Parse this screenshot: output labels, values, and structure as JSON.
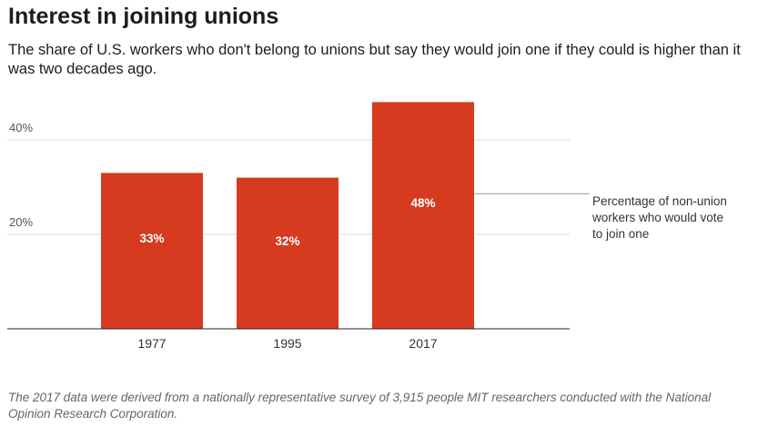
{
  "title": "Interest in joining unions",
  "subtitle": "The share of U.S. workers who don't belong to unions but say they would join one if they could is higher than it was two decades ago.",
  "note": "The 2017 data were derived from a nationally representative survey of 3,915 people MIT researchers conducted with the National Opinion Research Corporation.",
  "colors": {
    "bar": "#d63a1f",
    "grid": "#dcdcdc",
    "axis": "#222222"
  },
  "chart_data": {
    "type": "bar",
    "categories": [
      "1977",
      "1995",
      "2017"
    ],
    "values": [
      33,
      32,
      48
    ],
    "value_labels": [
      "33%",
      "32%",
      "48%"
    ],
    "ylim": [
      0,
      48
    ],
    "yticks": [
      {
        "value": 20,
        "label": "20%"
      },
      {
        "value": 40,
        "label": "40%"
      }
    ],
    "grid": true,
    "annotation": {
      "lines": [
        "Percentage of non-union",
        "workers who would vote",
        "to join one"
      ],
      "target_index": 2
    }
  }
}
